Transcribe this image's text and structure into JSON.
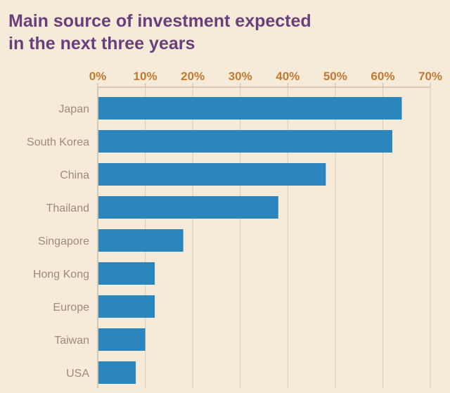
{
  "title_line1": "Main source of investment expected",
  "title_line2": "in the next three years",
  "colors": {
    "background": "#f6ead8",
    "title": "#6b3f7c",
    "tick_label": "#c07a32",
    "category_label": "#a08a7a",
    "bar": "#2a86bc",
    "grid": "#d8cbb8",
    "axis": "#c9b9a3"
  },
  "chart_data": {
    "type": "bar",
    "orientation": "horizontal",
    "title": "Main source of investment expected in the next three years",
    "xlabel": "",
    "ylabel": "",
    "xlim": [
      0,
      70
    ],
    "x_ticks": [
      "0%",
      "10%",
      "20%",
      "30%",
      "40%",
      "50%",
      "60%",
      "70%"
    ],
    "x_tick_values": [
      0,
      10,
      20,
      30,
      40,
      50,
      60,
      70
    ],
    "x_axis_position": "top",
    "grid": true,
    "categories": [
      "Japan",
      "South Korea",
      "China",
      "Thailand",
      "Singapore",
      "Hong Kong",
      "Europe",
      "Taiwan",
      "USA"
    ],
    "values": [
      64,
      62,
      48,
      38,
      18,
      12,
      12,
      10,
      8
    ]
  }
}
